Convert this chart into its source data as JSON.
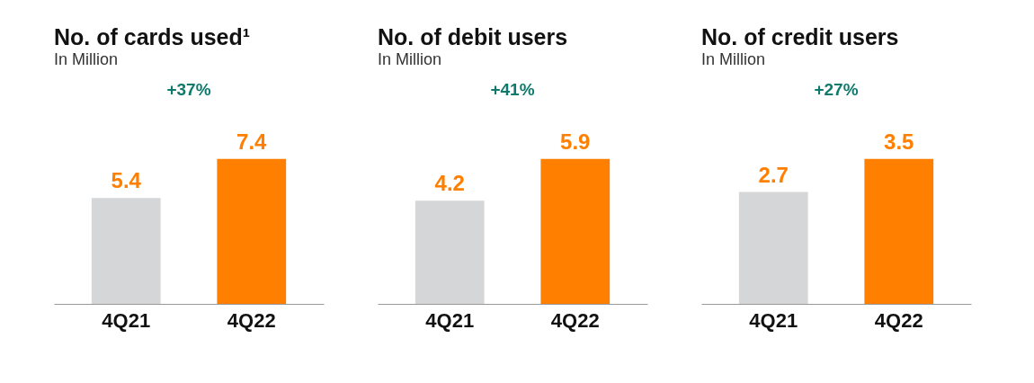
{
  "chart_data": [
    {
      "type": "bar",
      "title": "No. of cards used¹",
      "subtitle": "In Million",
      "categories": [
        "4Q21",
        "4Q22"
      ],
      "values": [
        5.4,
        7.4
      ],
      "colors": [
        "#d5d6d8",
        "#ff7f00"
      ],
      "data_labels": true,
      "annotations": [
        "+37%"
      ]
    },
    {
      "type": "bar",
      "title": "No. of debit users",
      "subtitle": "In Million",
      "categories": [
        "4Q21",
        "4Q22"
      ],
      "values": [
        4.2,
        5.9
      ],
      "colors": [
        "#d5d6d8",
        "#ff7f00"
      ],
      "data_labels": true,
      "annotations": [
        "+41%"
      ]
    },
    {
      "type": "bar",
      "title": "No. of credit users",
      "subtitle": "In Million",
      "categories": [
        "4Q21",
        "4Q22"
      ],
      "values": [
        2.7,
        3.5
      ],
      "colors": [
        "#d5d6d8",
        "#ff7f00"
      ],
      "data_labels": true,
      "annotations": [
        "+27%"
      ]
    }
  ]
}
